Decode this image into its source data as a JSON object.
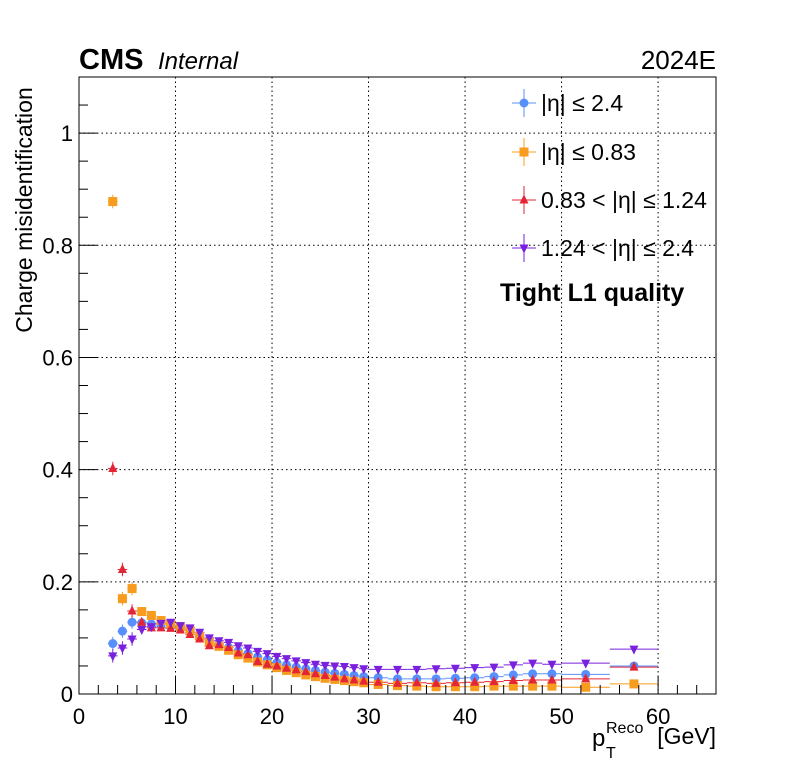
{
  "header": {
    "experiment": "CMS",
    "status": "Internal",
    "run": "2024E"
  },
  "annotation": "Tight L1 quality",
  "chart_data": {
    "type": "scatter",
    "xlabel": "[GeV]",
    "xlabel_symbol": "p",
    "xlabel_sub": "T",
    "xlabel_sup": "Reco",
    "ylabel": "Charge misidentification",
    "xlim": [
      0,
      66
    ],
    "ylim": [
      0,
      1.1
    ],
    "x_ticks": [
      0,
      10,
      20,
      30,
      40,
      50,
      60
    ],
    "x_tick_labels": [
      "0",
      "10",
      "20",
      "30",
      "40",
      "50",
      "60"
    ],
    "y_ticks": [
      0,
      0.2,
      0.4,
      0.6,
      0.8,
      1
    ],
    "y_tick_labels": [
      "0",
      "0.2",
      "0.4",
      "0.6",
      "0.8",
      "1"
    ],
    "grid": true,
    "legend_position": "top-right",
    "series": [
      {
        "name": "|η| ≤ 2.4",
        "color": "#5790fc",
        "marker": "circle",
        "points": [
          [
            3.5,
            0.09,
            0.5
          ],
          [
            4.5,
            0.112,
            0.5
          ],
          [
            5.5,
            0.128,
            0.5
          ],
          [
            6.5,
            0.127,
            0.5
          ],
          [
            7.5,
            0.125,
            0.5
          ],
          [
            8.5,
            0.123,
            0.5
          ],
          [
            9.5,
            0.12,
            0.5
          ],
          [
            10.5,
            0.116,
            0.5
          ],
          [
            11.5,
            0.11,
            0.5
          ],
          [
            12.5,
            0.103,
            0.5
          ],
          [
            13.5,
            0.095,
            0.5
          ],
          [
            14.5,
            0.089,
            0.5
          ],
          [
            15.5,
            0.083,
            0.5
          ],
          [
            16.5,
            0.077,
            0.5
          ],
          [
            17.5,
            0.072,
            0.5
          ],
          [
            18.5,
            0.066,
            0.5
          ],
          [
            19.5,
            0.061,
            0.5
          ],
          [
            20.5,
            0.056,
            0.5
          ],
          [
            21.5,
            0.052,
            0.5
          ],
          [
            22.5,
            0.048,
            0.5
          ],
          [
            23.5,
            0.045,
            0.5
          ],
          [
            24.5,
            0.042,
            0.5
          ],
          [
            25.5,
            0.039,
            0.5
          ],
          [
            26.5,
            0.037,
            0.5
          ],
          [
            27.5,
            0.035,
            0.5
          ],
          [
            28.5,
            0.033,
            0.5
          ],
          [
            29.5,
            0.031,
            0.5
          ],
          [
            31,
            0.029,
            1
          ],
          [
            33,
            0.027,
            1
          ],
          [
            35,
            0.027,
            1
          ],
          [
            37,
            0.027,
            1
          ],
          [
            39,
            0.028,
            1
          ],
          [
            41,
            0.029,
            1
          ],
          [
            43,
            0.031,
            1
          ],
          [
            45,
            0.034,
            1
          ],
          [
            47,
            0.036,
            1
          ],
          [
            49,
            0.036,
            1
          ],
          [
            52.5,
            0.035,
            2.5
          ],
          [
            57.5,
            0.05,
            2.5
          ]
        ]
      },
      {
        "name": "|η| ≤ 0.83",
        "color": "#f89c20",
        "marker": "square",
        "points": [
          [
            3.5,
            0.878,
            0.5
          ],
          [
            4.5,
            0.17,
            0.5
          ],
          [
            5.5,
            0.188,
            0.5
          ],
          [
            6.5,
            0.147,
            0.5
          ],
          [
            7.5,
            0.14,
            0.5
          ],
          [
            8.5,
            0.131,
            0.5
          ],
          [
            9.5,
            0.125,
            0.5
          ],
          [
            10.5,
            0.12,
            0.5
          ],
          [
            11.5,
            0.113,
            0.5
          ],
          [
            12.5,
            0.103,
            0.5
          ],
          [
            13.5,
            0.092,
            0.5
          ],
          [
            14.5,
            0.085,
            0.5
          ],
          [
            15.5,
            0.078,
            0.5
          ],
          [
            16.5,
            0.07,
            0.5
          ],
          [
            17.5,
            0.064,
            0.5
          ],
          [
            18.5,
            0.057,
            0.5
          ],
          [
            19.5,
            0.052,
            0.5
          ],
          [
            20.5,
            0.047,
            0.5
          ],
          [
            21.5,
            0.042,
            0.5
          ],
          [
            22.5,
            0.038,
            0.5
          ],
          [
            23.5,
            0.034,
            0.5
          ],
          [
            24.5,
            0.031,
            0.5
          ],
          [
            25.5,
            0.028,
            0.5
          ],
          [
            26.5,
            0.026,
            0.5
          ],
          [
            27.5,
            0.024,
            0.5
          ],
          [
            28.5,
            0.022,
            0.5
          ],
          [
            29.5,
            0.02,
            0.5
          ],
          [
            31,
            0.017,
            1
          ],
          [
            33,
            0.015,
            1
          ],
          [
            35,
            0.014,
            1
          ],
          [
            37,
            0.013,
            1
          ],
          [
            39,
            0.013,
            1
          ],
          [
            41,
            0.013,
            1
          ],
          [
            43,
            0.014,
            1
          ],
          [
            45,
            0.014,
            1
          ],
          [
            47,
            0.014,
            1
          ],
          [
            49,
            0.014,
            1
          ],
          [
            52.5,
            0.012,
            2.5
          ],
          [
            57.5,
            0.018,
            2.5
          ]
        ]
      },
      {
        "name": "0.83 < |η| ≤ 1.24",
        "color": "#e42536",
        "marker": "triangle-up",
        "points": [
          [
            3.5,
            0.402,
            0.5
          ],
          [
            4.5,
            0.222,
            0.5
          ],
          [
            5.5,
            0.148,
            0.5
          ],
          [
            6.5,
            0.128,
            0.5
          ],
          [
            7.5,
            0.118,
            0.5
          ],
          [
            8.5,
            0.118,
            0.5
          ],
          [
            9.5,
            0.117,
            0.5
          ],
          [
            10.5,
            0.114,
            0.5
          ],
          [
            11.5,
            0.106,
            0.5
          ],
          [
            12.5,
            0.098,
            0.5
          ],
          [
            13.5,
            0.086,
            0.5
          ],
          [
            14.5,
            0.088,
            0.5
          ],
          [
            15.5,
            0.083,
            0.5
          ],
          [
            16.5,
            0.073,
            0.5
          ],
          [
            17.5,
            0.07,
            0.5
          ],
          [
            18.5,
            0.058,
            0.5
          ],
          [
            19.5,
            0.053,
            0.5
          ],
          [
            20.5,
            0.05,
            0.5
          ],
          [
            21.5,
            0.046,
            0.5
          ],
          [
            22.5,
            0.043,
            0.5
          ],
          [
            23.5,
            0.04,
            0.5
          ],
          [
            24.5,
            0.036,
            0.5
          ],
          [
            25.5,
            0.033,
            0.5
          ],
          [
            26.5,
            0.03,
            0.5
          ],
          [
            27.5,
            0.027,
            0.5
          ],
          [
            28.5,
            0.025,
            0.5
          ],
          [
            29.5,
            0.023,
            0.5
          ],
          [
            31,
            0.021,
            1
          ],
          [
            33,
            0.019,
            1
          ],
          [
            35,
            0.02,
            1
          ],
          [
            37,
            0.019,
            1
          ],
          [
            39,
            0.02,
            1
          ],
          [
            41,
            0.021,
            1
          ],
          [
            43,
            0.022,
            1
          ],
          [
            45,
            0.024,
            1
          ],
          [
            47,
            0.025,
            1
          ],
          [
            49,
            0.025,
            1
          ],
          [
            52.5,
            0.027,
            2.5
          ],
          [
            57.5,
            0.048,
            2.5
          ]
        ]
      },
      {
        "name": "1.24 < |η| ≤ 2.4",
        "color": "#7a21dd",
        "marker": "triangle-down",
        "points": [
          [
            3.5,
            0.068,
            0.5
          ],
          [
            4.5,
            0.082,
            0.5
          ],
          [
            5.5,
            0.098,
            0.5
          ],
          [
            6.5,
            0.115,
            0.5
          ],
          [
            7.5,
            0.12,
            0.5
          ],
          [
            8.5,
            0.126,
            0.5
          ],
          [
            9.5,
            0.128,
            0.5
          ],
          [
            10.5,
            0.122,
            0.5
          ],
          [
            11.5,
            0.118,
            0.5
          ],
          [
            12.5,
            0.11,
            0.5
          ],
          [
            13.5,
            0.1,
            0.5
          ],
          [
            14.5,
            0.095,
            0.5
          ],
          [
            15.5,
            0.092,
            0.5
          ],
          [
            16.5,
            0.086,
            0.5
          ],
          [
            17.5,
            0.082,
            0.5
          ],
          [
            18.5,
            0.076,
            0.5
          ],
          [
            19.5,
            0.072,
            0.5
          ],
          [
            20.5,
            0.067,
            0.5
          ],
          [
            21.5,
            0.063,
            0.5
          ],
          [
            22.5,
            0.059,
            0.5
          ],
          [
            23.5,
            0.056,
            0.5
          ],
          [
            24.5,
            0.053,
            0.5
          ],
          [
            25.5,
            0.051,
            0.5
          ],
          [
            26.5,
            0.05,
            0.5
          ],
          [
            27.5,
            0.049,
            0.5
          ],
          [
            28.5,
            0.047,
            0.5
          ],
          [
            29.5,
            0.045,
            0.5
          ],
          [
            31,
            0.044,
            1
          ],
          [
            33,
            0.044,
            1
          ],
          [
            35,
            0.044,
            1
          ],
          [
            37,
            0.045,
            1
          ],
          [
            39,
            0.046,
            1
          ],
          [
            41,
            0.047,
            1
          ],
          [
            43,
            0.048,
            1
          ],
          [
            45,
            0.052,
            1
          ],
          [
            47,
            0.055,
            1
          ],
          [
            49,
            0.053,
            1
          ],
          [
            52.5,
            0.055,
            2.5
          ],
          [
            57.5,
            0.08,
            2.5
          ]
        ]
      }
    ]
  }
}
